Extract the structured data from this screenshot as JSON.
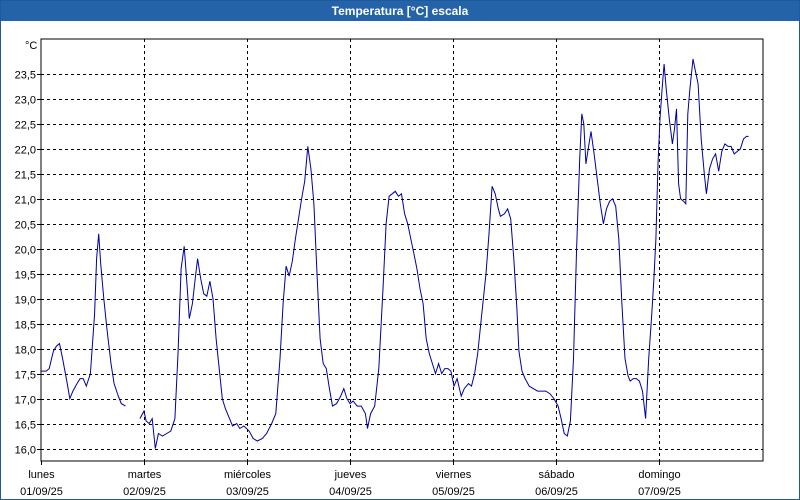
{
  "window": {
    "title": "Temperatura [°C] escala"
  },
  "chart_data": {
    "type": "line",
    "title": "Temperatura [°C] escala",
    "ylabel": "°C",
    "xlabel": "",
    "ylim": [
      15.75,
      24.2
    ],
    "xlim": [
      0,
      7.05
    ],
    "yticks": [
      "16,0",
      "16,5",
      "17,0",
      "17,5",
      "18,0",
      "18,5",
      "19,0",
      "19,5",
      "20,0",
      "20,5",
      "21,0",
      "21,5",
      "22,0",
      "22,5",
      "23,0",
      "23,5"
    ],
    "ytick_values": [
      16.0,
      16.5,
      17.0,
      17.5,
      18.0,
      18.5,
      19.0,
      19.5,
      20.0,
      20.5,
      21.0,
      21.5,
      22.0,
      22.5,
      23.0,
      23.5
    ],
    "xticks": [
      {
        "day": "lunes",
        "date": "01/09/25"
      },
      {
        "day": "martes",
        "date": "02/09/25"
      },
      {
        "day": "miércoles",
        "date": "03/09/25"
      },
      {
        "day": "jueves",
        "date": "04/09/25"
      },
      {
        "day": "viernes",
        "date": "05/09/25"
      },
      {
        "day": "sábado",
        "date": "06/09/25"
      },
      {
        "day": "domingo",
        "date": "07/09/25"
      }
    ],
    "grid": true,
    "line_color": "#0000a0",
    "series": [
      {
        "name": "",
        "segments": [
          [
            [
              0.0,
              17.55
            ],
            [
              0.05,
              17.55
            ],
            [
              0.08,
              17.6
            ],
            [
              0.12,
              17.95
            ],
            [
              0.15,
              18.05
            ],
            [
              0.18,
              18.1
            ],
            [
              0.21,
              17.8
            ],
            [
              0.25,
              17.35
            ],
            [
              0.28,
              17.0
            ],
            [
              0.31,
              17.15
            ],
            [
              0.35,
              17.3
            ],
            [
              0.38,
              17.4
            ],
            [
              0.41,
              17.4
            ],
            [
              0.44,
              17.25
            ],
            [
              0.48,
              17.5
            ],
            [
              0.52,
              18.7
            ],
            [
              0.54,
              19.8
            ],
            [
              0.56,
              20.3
            ],
            [
              0.58,
              19.7
            ],
            [
              0.61,
              19.0
            ],
            [
              0.64,
              18.4
            ],
            [
              0.68,
              17.7
            ],
            [
              0.71,
              17.3
            ],
            [
              0.75,
              17.05
            ],
            [
              0.78,
              16.9
            ],
            [
              0.82,
              16.85
            ]
          ],
          [
            [
              0.96,
              16.6
            ],
            [
              1.0,
              16.75
            ],
            [
              1.02,
              16.55
            ],
            [
              1.05,
              16.5
            ],
            [
              1.08,
              16.6
            ],
            [
              1.11,
              16.0
            ],
            [
              1.14,
              16.3
            ],
            [
              1.18,
              16.25
            ],
            [
              1.22,
              16.3
            ],
            [
              1.26,
              16.35
            ],
            [
              1.3,
              16.6
            ],
            [
              1.33,
              17.9
            ],
            [
              1.36,
              19.6
            ],
            [
              1.39,
              20.05
            ],
            [
              1.42,
              19.2
            ],
            [
              1.44,
              18.6
            ],
            [
              1.47,
              18.9
            ],
            [
              1.5,
              19.45
            ],
            [
              1.52,
              19.8
            ],
            [
              1.55,
              19.4
            ],
            [
              1.58,
              19.1
            ],
            [
              1.61,
              19.05
            ],
            [
              1.64,
              19.35
            ],
            [
              1.67,
              19.0
            ],
            [
              1.7,
              18.2
            ],
            [
              1.73,
              17.6
            ],
            [
              1.76,
              17.0
            ],
            [
              1.79,
              16.8
            ],
            [
              1.83,
              16.6
            ],
            [
              1.86,
              16.45
            ],
            [
              1.9,
              16.5
            ],
            [
              1.93,
              16.4
            ],
            [
              1.97,
              16.45
            ],
            [
              2.02,
              16.35
            ],
            [
              2.06,
              16.2
            ],
            [
              2.1,
              16.15
            ],
            [
              2.15,
              16.2
            ],
            [
              2.19,
              16.3
            ],
            [
              2.24,
              16.5
            ],
            [
              2.28,
              16.7
            ],
            [
              2.32,
              17.8
            ],
            [
              2.35,
              18.9
            ],
            [
              2.38,
              19.65
            ],
            [
              2.41,
              19.45
            ],
            [
              2.44,
              19.75
            ],
            [
              2.47,
              20.2
            ],
            [
              2.5,
              20.6
            ],
            [
              2.53,
              21.0
            ],
            [
              2.56,
              21.35
            ],
            [
              2.59,
              22.05
            ],
            [
              2.62,
              21.6
            ],
            [
              2.65,
              20.9
            ],
            [
              2.68,
              19.5
            ],
            [
              2.71,
              18.2
            ],
            [
              2.74,
              17.7
            ],
            [
              2.77,
              17.6
            ],
            [
              2.8,
              17.2
            ],
            [
              2.83,
              16.85
            ],
            [
              2.87,
              16.9
            ],
            [
              2.91,
              17.05
            ],
            [
              2.94,
              17.2
            ],
            [
              2.97,
              17.0
            ],
            [
              3.0,
              16.9
            ],
            [
              3.03,
              16.95
            ],
            [
              3.07,
              16.85
            ],
            [
              3.11,
              16.85
            ],
            [
              3.15,
              16.7
            ],
            [
              3.17,
              16.4
            ],
            [
              3.2,
              16.7
            ],
            [
              3.24,
              16.85
            ],
            [
              3.28,
              17.6
            ],
            [
              3.32,
              19.2
            ],
            [
              3.35,
              20.5
            ],
            [
              3.38,
              21.05
            ],
            [
              3.41,
              21.1
            ],
            [
              3.44,
              21.15
            ],
            [
              3.47,
              21.05
            ],
            [
              3.5,
              21.1
            ],
            [
              3.53,
              20.7
            ],
            [
              3.56,
              20.5
            ],
            [
              3.59,
              20.2
            ],
            [
              3.62,
              19.9
            ],
            [
              3.65,
              19.6
            ],
            [
              3.68,
              19.2
            ],
            [
              3.71,
              18.9
            ],
            [
              3.74,
              18.2
            ],
            [
              3.77,
              17.9
            ],
            [
              3.8,
              17.7
            ],
            [
              3.83,
              17.5
            ],
            [
              3.86,
              17.7
            ],
            [
              3.89,
              17.5
            ],
            [
              3.92,
              17.6
            ],
            [
              3.95,
              17.6
            ],
            [
              3.98,
              17.55
            ],
            [
              4.01,
              17.25
            ],
            [
              4.04,
              17.4
            ],
            [
              4.08,
              17.05
            ],
            [
              4.11,
              17.2
            ],
            [
              4.15,
              17.3
            ],
            [
              4.18,
              17.25
            ],
            [
              4.21,
              17.5
            ],
            [
              4.24,
              17.9
            ],
            [
              4.28,
              18.7
            ],
            [
              4.32,
              19.5
            ],
            [
              4.35,
              20.3
            ],
            [
              4.38,
              21.25
            ],
            [
              4.41,
              21.1
            ],
            [
              4.44,
              20.8
            ],
            [
              4.46,
              20.65
            ],
            [
              4.5,
              20.7
            ],
            [
              4.53,
              20.8
            ],
            [
              4.56,
              20.6
            ],
            [
              4.59,
              19.8
            ],
            [
              4.62,
              18.8
            ],
            [
              4.64,
              17.95
            ],
            [
              4.67,
              17.55
            ],
            [
              4.7,
              17.4
            ],
            [
              4.74,
              17.25
            ],
            [
              4.78,
              17.2
            ],
            [
              4.82,
              17.15
            ],
            [
              4.86,
              17.15
            ],
            [
              4.9,
              17.15
            ],
            [
              4.94,
              17.1
            ],
            [
              4.98,
              17.0
            ],
            [
              5.02,
              16.85
            ],
            [
              5.05,
              16.6
            ],
            [
              5.08,
              16.3
            ],
            [
              5.11,
              16.25
            ],
            [
              5.14,
              16.55
            ],
            [
              5.17,
              17.8
            ],
            [
              5.2,
              20.0
            ],
            [
              5.23,
              21.8
            ],
            [
              5.25,
              22.7
            ],
            [
              5.27,
              22.5
            ],
            [
              5.29,
              21.7
            ],
            [
              5.32,
              22.1
            ],
            [
              5.34,
              22.35
            ],
            [
              5.37,
              21.9
            ],
            [
              5.4,
              21.4
            ],
            [
              5.43,
              20.9
            ],
            [
              5.46,
              20.5
            ],
            [
              5.49,
              20.8
            ],
            [
              5.52,
              20.95
            ],
            [
              5.55,
              21.0
            ],
            [
              5.58,
              20.85
            ],
            [
              5.61,
              20.2
            ],
            [
              5.64,
              18.9
            ],
            [
              5.67,
              17.8
            ],
            [
              5.7,
              17.45
            ],
            [
              5.72,
              17.35
            ],
            [
              5.75,
              17.4
            ],
            [
              5.78,
              17.4
            ],
            [
              5.81,
              17.35
            ],
            [
              5.84,
              17.15
            ],
            [
              5.87,
              16.6
            ],
            [
              5.9,
              17.8
            ],
            [
              5.93,
              18.7
            ],
            [
              5.95,
              19.4
            ],
            [
              5.97,
              20.2
            ],
            [
              5.99,
              21.7
            ],
            [
              6.01,
              22.6
            ],
            [
              6.03,
              23.2
            ],
            [
              6.05,
              23.7
            ],
            [
              6.07,
              23.2
            ],
            [
              6.1,
              22.6
            ],
            [
              6.13,
              22.1
            ],
            [
              6.15,
              22.4
            ],
            [
              6.17,
              22.8
            ],
            [
              6.19,
              21.3
            ],
            [
              6.21,
              21.0
            ],
            [
              6.24,
              20.95
            ],
            [
              6.26,
              20.9
            ],
            [
              6.28,
              22.7
            ],
            [
              6.3,
              23.2
            ],
            [
              6.33,
              23.8
            ],
            [
              6.35,
              23.6
            ],
            [
              6.38,
              23.3
            ],
            [
              6.41,
              22.2
            ],
            [
              6.44,
              21.5
            ],
            [
              6.46,
              21.1
            ],
            [
              6.49,
              21.6
            ],
            [
              6.52,
              21.8
            ],
            [
              6.55,
              21.9
            ],
            [
              6.58,
              21.55
            ],
            [
              6.61,
              21.95
            ],
            [
              6.64,
              22.1
            ],
            [
              6.67,
              22.05
            ],
            [
              6.7,
              22.05
            ],
            [
              6.73,
              21.9
            ],
            [
              6.76,
              21.95
            ],
            [
              6.79,
              22.0
            ],
            [
              6.82,
              22.2
            ],
            [
              6.85,
              22.25
            ],
            [
              6.87,
              22.25
            ]
          ]
        ]
      }
    ]
  }
}
